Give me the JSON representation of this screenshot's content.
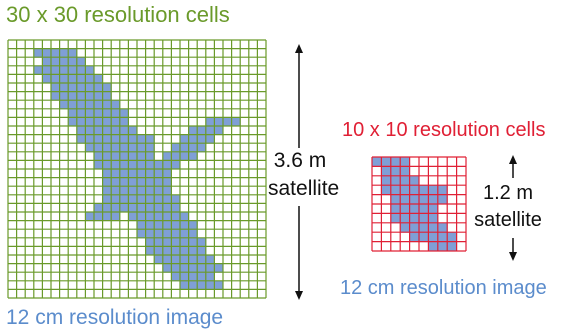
{
  "left_panel": {
    "title": "30 x 30 resolution cells",
    "caption": "12 cm resolution image",
    "dimension_value": "3.6 m",
    "dimension_unit": "satellite",
    "grid_cells": 30,
    "grid_color": "#6a9a2a",
    "shape_color": "#7f9fd6"
  },
  "right_panel": {
    "title": "10 x 10 resolution cells",
    "caption": "12 cm resolution image",
    "dimension_value": "1.2 m",
    "dimension_unit": "satellite",
    "grid_cells": 10,
    "grid_color": "#e02035",
    "shape_color": "#7f9fd6"
  }
}
